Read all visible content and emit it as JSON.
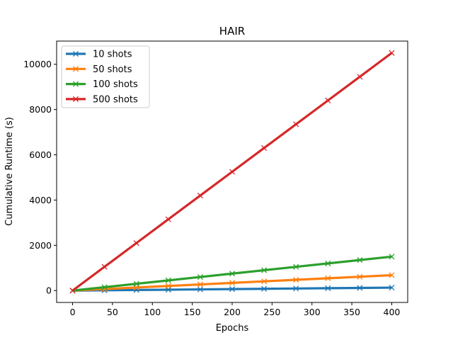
{
  "chart_data": {
    "type": "line",
    "title": "HAIR",
    "xlabel": "Epochs",
    "ylabel": "Cumulative Runtime (s)",
    "xlim": [
      -20,
      420
    ],
    "ylim": [
      -525,
      11025
    ],
    "xticks": [
      0,
      50,
      100,
      150,
      200,
      250,
      300,
      350,
      400
    ],
    "yticks": [
      0,
      2000,
      4000,
      6000,
      8000,
      10000
    ],
    "grid": false,
    "legend_position": "top-left",
    "x": [
      0,
      40,
      80,
      120,
      160,
      200,
      240,
      280,
      320,
      360,
      400
    ],
    "series": [
      {
        "name": "10 shots",
        "color": "#1f77b4",
        "marker": "x",
        "values": [
          0,
          13,
          26,
          39,
          52,
          65,
          78,
          91,
          104,
          117,
          130
        ]
      },
      {
        "name": "50 shots",
        "color": "#ff7f0e",
        "marker": "x",
        "values": [
          0,
          68,
          136,
          204,
          272,
          340,
          408,
          476,
          544,
          612,
          680
        ]
      },
      {
        "name": "100 shots",
        "color": "#2ca02c",
        "marker": "x",
        "values": [
          0,
          150,
          300,
          450,
          600,
          750,
          900,
          1050,
          1200,
          1350,
          1500
        ]
      },
      {
        "name": "500 shots",
        "color": "#d62728",
        "marker": "x",
        "values": [
          0,
          1050,
          2100,
          3150,
          4200,
          5250,
          6300,
          7350,
          8400,
          9450,
          10500
        ]
      }
    ]
  }
}
